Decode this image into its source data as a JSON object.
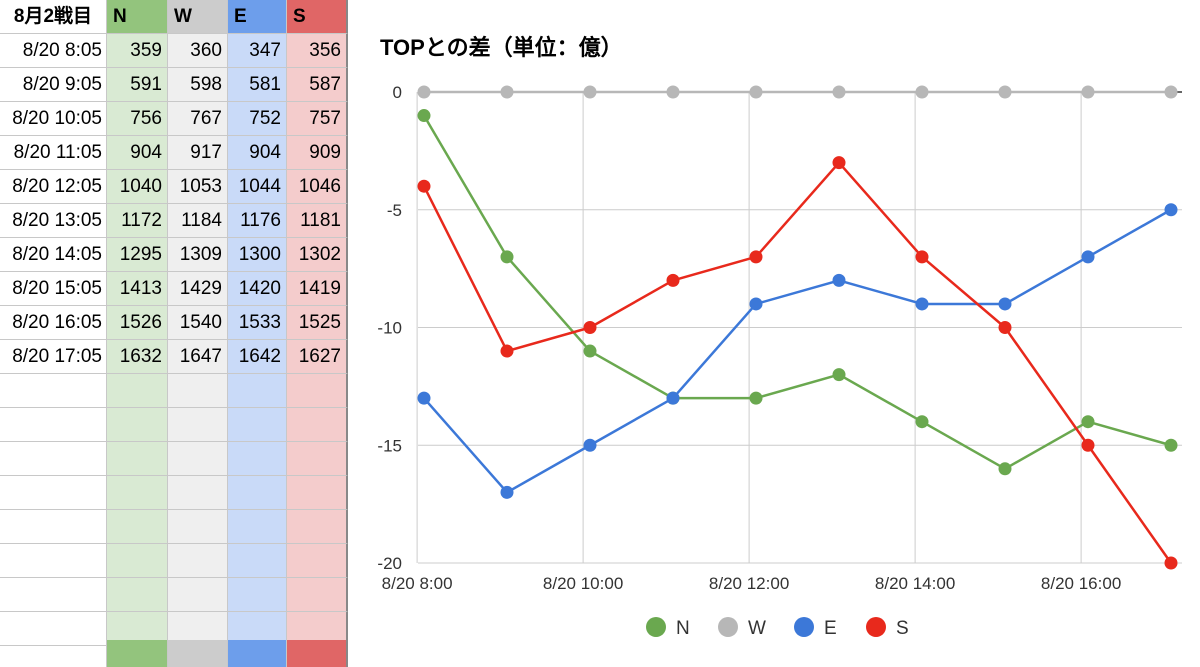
{
  "sheet": {
    "header": {
      "time": "8月2戦目",
      "n": "N",
      "w": "W",
      "e": "E",
      "s": "S"
    },
    "rows": [
      {
        "time": "8/20 8:05",
        "n": "359",
        "w": "360",
        "e": "347",
        "s": "356"
      },
      {
        "time": "8/20 9:05",
        "n": "591",
        "w": "598",
        "e": "581",
        "s": "587"
      },
      {
        "time": "8/20 10:05",
        "n": "756",
        "w": "767",
        "e": "752",
        "s": "757"
      },
      {
        "time": "8/20 11:05",
        "n": "904",
        "w": "917",
        "e": "904",
        "s": "909"
      },
      {
        "time": "8/20 12:05",
        "n": "1040",
        "w": "1053",
        "e": "1044",
        "s": "1046"
      },
      {
        "time": "8/20 13:05",
        "n": "1172",
        "w": "1184",
        "e": "1176",
        "s": "1181"
      },
      {
        "time": "8/20 14:05",
        "n": "1295",
        "w": "1309",
        "e": "1300",
        "s": "1302"
      },
      {
        "time": "8/20 15:05",
        "n": "1413",
        "w": "1429",
        "e": "1420",
        "s": "1419"
      },
      {
        "time": "8/20 16:05",
        "n": "1526",
        "w": "1540",
        "e": "1533",
        "s": "1525"
      },
      {
        "time": "8/20 17:05",
        "n": "1632",
        "w": "1647",
        "e": "1642",
        "s": "1627"
      }
    ]
  },
  "chart_data": {
    "type": "line",
    "title": "TOPとの差（単位：億）",
    "x": [
      "8/20 8:05",
      "8/20 9:05",
      "8/20 10:05",
      "8/20 11:05",
      "8/20 12:05",
      "8/20 13:05",
      "8/20 14:05",
      "8/20 15:05",
      "8/20 16:05",
      "8/20 17:05"
    ],
    "x_tick_labels": [
      "8/20 8:00",
      "8/20 10:00",
      "8/20 12:00",
      "8/20 14:00",
      "8/20 16:00"
    ],
    "y_tick_labels": [
      "0",
      "-5",
      "-10",
      "-15",
      "-20"
    ],
    "ylim": [
      -20,
      0
    ],
    "grid": true,
    "legend_position": "bottom",
    "series": [
      {
        "name": "N",
        "color": "#6aa84f",
        "values": [
          -1,
          -7,
          -11,
          -13,
          -13,
          -12,
          -14,
          -16,
          -14,
          -15
        ]
      },
      {
        "name": "W",
        "color": "#b7b7b7",
        "values": [
          0,
          0,
          0,
          0,
          0,
          0,
          0,
          0,
          0,
          0
        ]
      },
      {
        "name": "E",
        "color": "#3c78d8",
        "values": [
          -13,
          -17,
          -15,
          -13,
          -9,
          -8,
          -9,
          -9,
          -7,
          -5
        ]
      },
      {
        "name": "S",
        "color": "#e8291c",
        "values": [
          -4,
          -11,
          -10,
          -8,
          -7,
          -3,
          -7,
          -10,
          -15,
          -20
        ]
      }
    ]
  }
}
